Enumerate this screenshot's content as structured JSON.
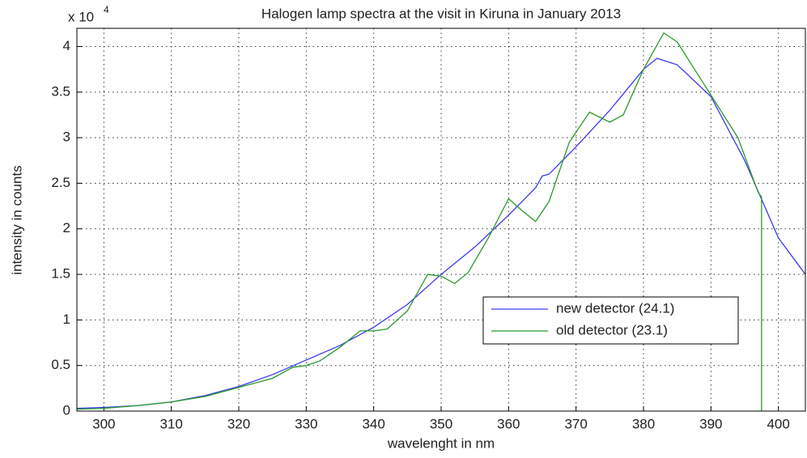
{
  "chart_data": {
    "type": "line",
    "title": "Halogen lamp spectra at the visit in Kiruna in January 2013",
    "xlabel": "wavelenght in nm",
    "ylabel": "intensity in counts",
    "y_multiplier": "x 10",
    "y_multiplier_exp": "4",
    "xlim": [
      296,
      404
    ],
    "ylim": [
      0,
      4.2
    ],
    "xticks": [
      300,
      310,
      320,
      330,
      340,
      350,
      360,
      370,
      380,
      390,
      400
    ],
    "yticks": [
      0,
      0.5,
      1,
      1.5,
      2,
      2.5,
      3,
      3.5,
      4
    ],
    "grid": true,
    "legend": "center-right",
    "series": [
      {
        "name": "new detector (24.1)",
        "color": "#3a3af0",
        "x": [
          296,
          300,
          305,
          310,
          315,
          320,
          325,
          330,
          335,
          340,
          345,
          350,
          355,
          360,
          364,
          365,
          366,
          370,
          375,
          380,
          382,
          385,
          390,
          395,
          400,
          404
        ],
        "values": [
          0.03,
          0.04,
          0.06,
          0.1,
          0.17,
          0.27,
          0.4,
          0.56,
          0.72,
          0.92,
          1.17,
          1.5,
          1.8,
          2.15,
          2.45,
          2.58,
          2.6,
          2.9,
          3.3,
          3.75,
          3.87,
          3.8,
          3.45,
          2.75,
          1.9,
          1.5
        ]
      },
      {
        "name": "old detector (23.1)",
        "color": "#2a9a2a",
        "x": [
          296,
          300,
          305,
          310,
          315,
          320,
          325,
          328,
          330,
          332,
          335,
          338,
          340,
          342,
          345,
          348,
          350,
          352,
          354,
          357,
          360,
          362,
          364,
          366,
          369,
          372,
          375,
          377,
          380,
          383,
          385,
          388,
          391,
          394,
          397,
          397.5,
          397.5
        ],
        "values": [
          0.02,
          0.03,
          0.06,
          0.1,
          0.16,
          0.26,
          0.36,
          0.48,
          0.5,
          0.55,
          0.7,
          0.88,
          0.88,
          0.9,
          1.1,
          1.5,
          1.48,
          1.4,
          1.52,
          1.9,
          2.33,
          2.2,
          2.08,
          2.3,
          2.95,
          3.28,
          3.17,
          3.25,
          3.75,
          4.15,
          4.05,
          3.7,
          3.35,
          3.0,
          2.4,
          2.35,
          0
        ]
      }
    ]
  }
}
